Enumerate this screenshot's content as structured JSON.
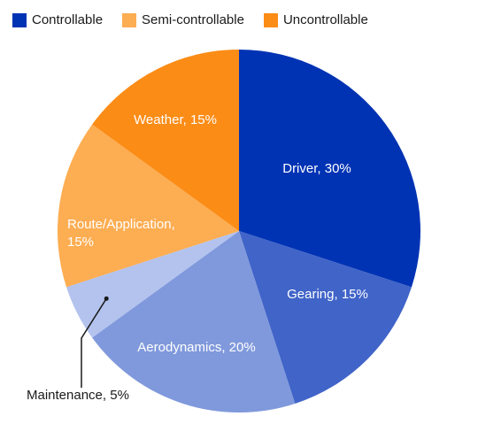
{
  "legend": [
    {
      "label": "Controllable",
      "color": "#0033b4"
    },
    {
      "label": "Semi-controllable",
      "color": "#fdad52"
    },
    {
      "label": "Uncontrollable",
      "color": "#fb8c16"
    }
  ],
  "chart_data": {
    "type": "pie",
    "start_angle_deg": 0,
    "direction": "clockwise",
    "slices": [
      {
        "name": "driver",
        "label": [
          "Driver, 30%"
        ],
        "value": 30,
        "color": "#0033b4",
        "group": "Controllable",
        "label_color": "#ffffff"
      },
      {
        "name": "gearing",
        "label": [
          "Gearing, 15%"
        ],
        "value": 15,
        "color": "#4064c8",
        "group": "Controllable",
        "label_color": "#ffffff"
      },
      {
        "name": "aerodynamics",
        "label": [
          "Aerodynamics, 20%"
        ],
        "value": 20,
        "color": "#8099dc",
        "group": "Controllable",
        "label_color": "#ffffff"
      },
      {
        "name": "maintenance",
        "label": [
          "Maintenance, 5%"
        ],
        "value": 5,
        "color": "#b3c3ee",
        "group": "Controllable",
        "label_color": "#1a1a1a",
        "callout": true
      },
      {
        "name": "route-application",
        "label": [
          "Route/Application,",
          "15%"
        ],
        "value": 15,
        "color": "#fdad52",
        "group": "Semi-controllable",
        "label_color": "#ffffff"
      },
      {
        "name": "weather",
        "label": [
          "Weather, 15%"
        ],
        "value": 15,
        "color": "#fb8c16",
        "group": "Uncontrollable",
        "label_color": "#ffffff"
      }
    ]
  }
}
